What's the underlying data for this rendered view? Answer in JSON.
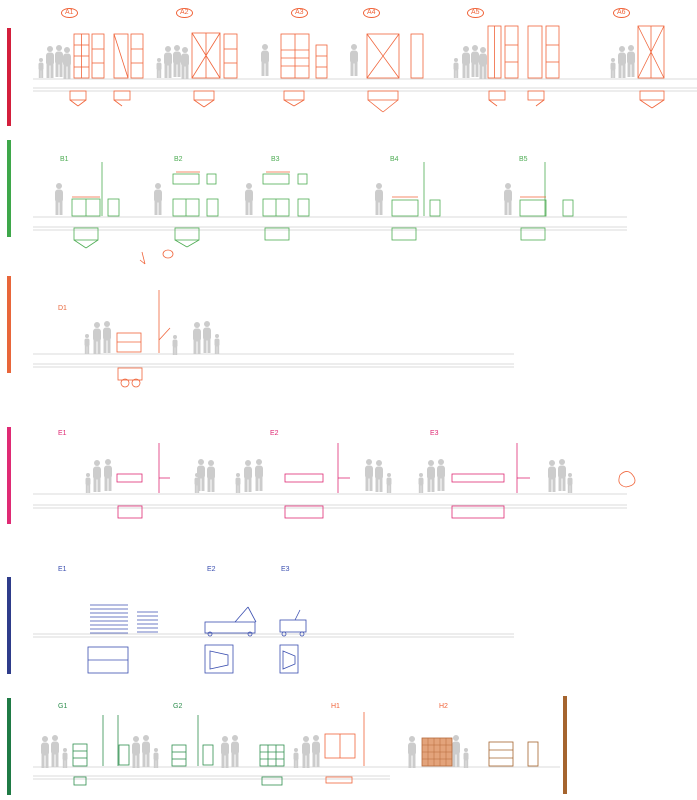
{
  "colors": {
    "band_a": "#d31f3c",
    "band_b": "#3ea74a",
    "band_d": "#e8663a",
    "band_e": "#df2a74",
    "band_f": "#2e3c8a",
    "band_g": "#1f7a45",
    "band_h": "#a5642e",
    "line_a": "#f0643a",
    "line_b": "#4eac54",
    "line_f": "#3b4fb0",
    "line_g": "#2f8f4f",
    "figure": "#cccccc"
  },
  "rows": {
    "a": {
      "labels": [
        "A1",
        "A2",
        "A3",
        "A4",
        "A5",
        "A6"
      ]
    },
    "b": {
      "labels": [
        "B1",
        "B2",
        "B3",
        "B4",
        "B5"
      ]
    },
    "d": {
      "labels": [
        "D1"
      ]
    },
    "e": {
      "labels": [
        "E1",
        "E2",
        "E3"
      ]
    },
    "f": {
      "labels": [
        "E1",
        "E2",
        "E3"
      ]
    },
    "g": {
      "labels": [
        "G1",
        "G2",
        "H1",
        "H2"
      ]
    }
  }
}
